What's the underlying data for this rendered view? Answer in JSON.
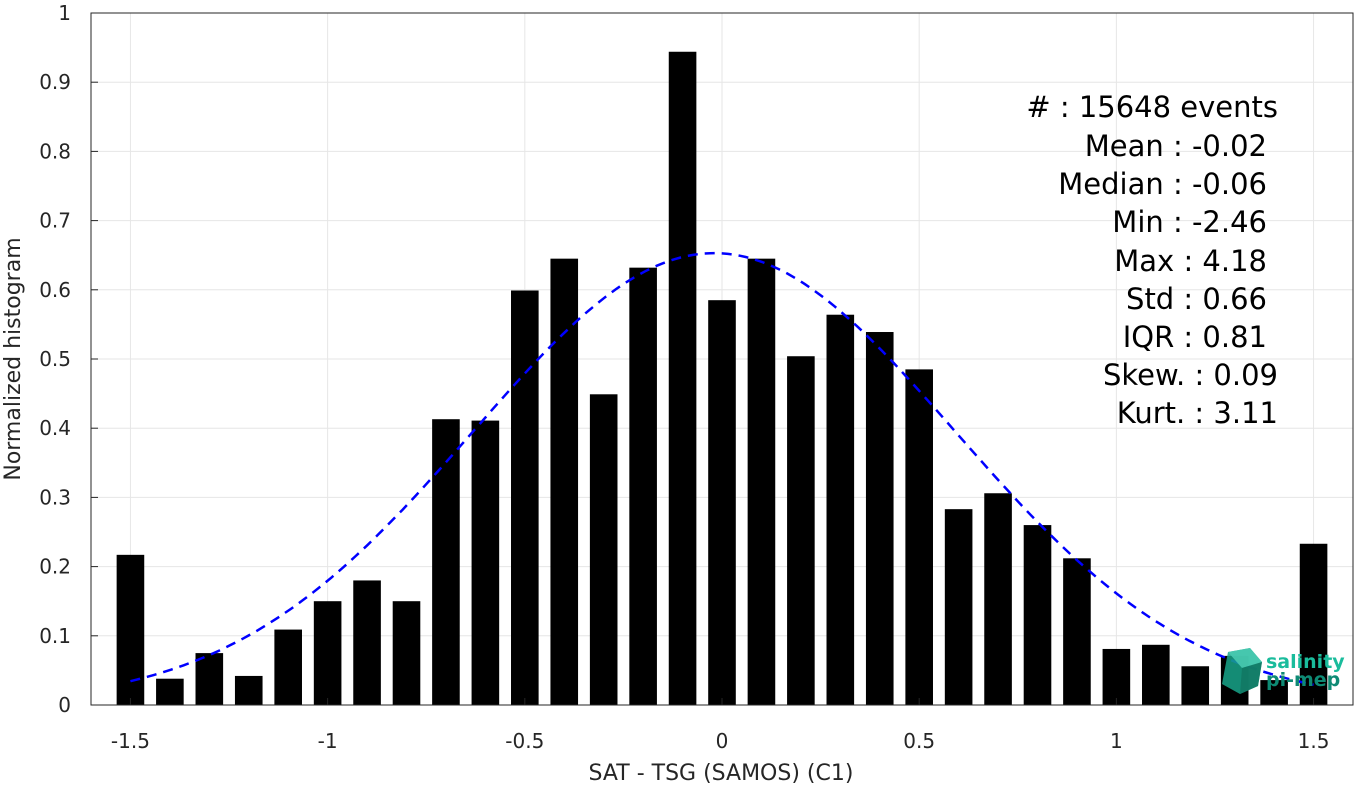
{
  "chart_data": {
    "type": "bar",
    "xlabel": "SAT - TSG (SAMOS) (C1)",
    "ylabel": "Normalized histogram",
    "xlim": [
      -1.6,
      1.6
    ],
    "ylim": [
      0,
      1
    ],
    "grid": true,
    "xticks": [
      "-1.5",
      "-1",
      "-0.5",
      "0",
      "0.5",
      "1",
      "1.5"
    ],
    "yticks": [
      "0",
      "0.1",
      "0.2",
      "0.3",
      "0.4",
      "0.5",
      "0.6",
      "0.7",
      "0.8",
      "0.9",
      "1"
    ],
    "bar_width": 0.07,
    "series": [
      {
        "x": [
          -1.5,
          -1.4,
          -1.3,
          -1.2,
          -1.1,
          -1.0,
          -0.9,
          -0.8,
          -0.7,
          -0.6,
          -0.5,
          -0.4,
          -0.3,
          -0.2,
          -0.1,
          0.0,
          0.1,
          0.2,
          0.3,
          0.4,
          0.5,
          0.6,
          0.7,
          0.8,
          0.9,
          1.0,
          1.1,
          1.2,
          1.3,
          1.4,
          1.5
        ],
        "values": [
          0.217,
          0.038,
          0.075,
          0.042,
          0.109,
          0.15,
          0.18,
          0.15,
          0.413,
          0.411,
          0.599,
          0.645,
          0.449,
          0.632,
          0.944,
          0.585,
          0.645,
          0.504,
          0.564,
          0.539,
          0.485,
          0.283,
          0.306,
          0.26,
          0.212,
          0.081,
          0.087,
          0.056,
          0.071,
          0.036,
          0.233
        ]
      }
    ],
    "fit_curve": {
      "style": "dashed",
      "color": "#0000ff",
      "mean": -0.02,
      "std": 0.61,
      "peak": 0.653,
      "x_range": [
        -1.5,
        1.5
      ]
    }
  },
  "stats": {
    "count": "#  : 15648 events",
    "mean": "Mean : -0.02",
    "median": "Median : -0.06",
    "min": "Min : -2.46",
    "max": "Max : 4.18",
    "std": "Std : 0.66",
    "iqr": "IQR : 0.81",
    "skew": "Skew. : 0.09",
    "kurt": "Kurt. : 3.11"
  },
  "logo": {
    "line1": "salinity",
    "line2": "pi-mep",
    "color1": "#1abc9c",
    "color2": "#0e8a74"
  },
  "colors": {
    "bar": "#000000",
    "grid": "#e6e6e6",
    "axis": "#262626"
  }
}
